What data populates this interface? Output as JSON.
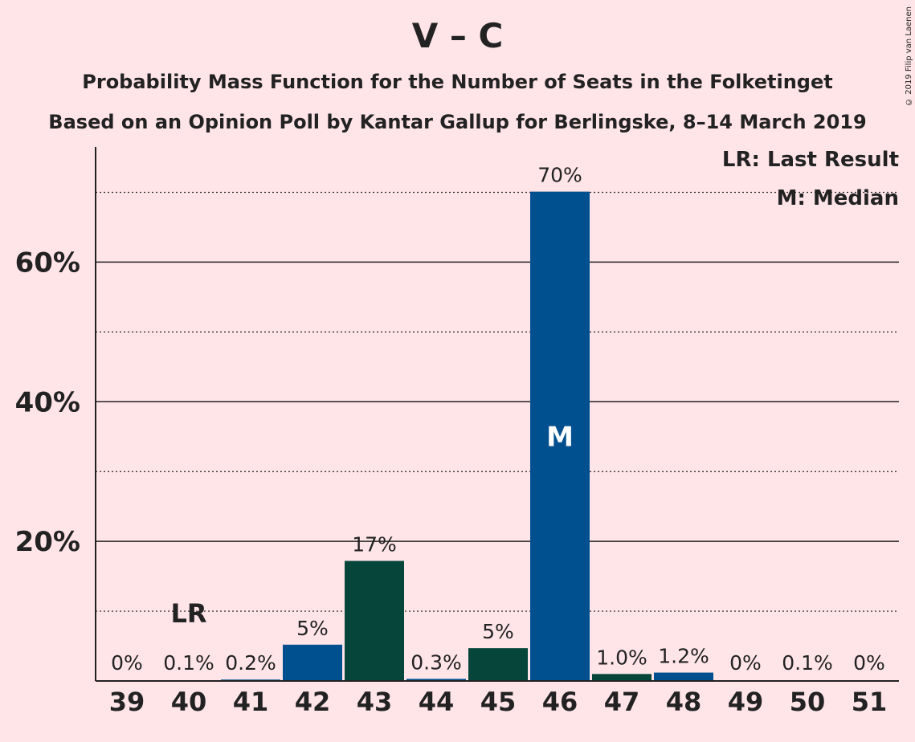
{
  "title": "V – C",
  "subtitle1": "Probability Mass Function for the Number of Seats in the Folketinget",
  "subtitle2": "Based on an Opinion Poll by Kantar Gallup for Berlingske, 8–14 March 2019",
  "copyright": "© 2019 Filip van Laenen",
  "legend": {
    "last_result": "LR: Last Result",
    "median": "M: Median"
  },
  "colors": {
    "background": "#FFE4E8",
    "blue": "#00508F",
    "green": "#05453A",
    "text": "#222222"
  },
  "chart_data": {
    "type": "bar",
    "categories": [
      "39",
      "40",
      "41",
      "42",
      "43",
      "44",
      "45",
      "46",
      "47",
      "48",
      "49",
      "50",
      "51"
    ],
    "values": [
      0,
      0.1,
      0.2,
      5.2,
      17.2,
      0.3,
      4.7,
      70.1,
      1.0,
      1.2,
      0,
      0.1,
      0
    ],
    "labels": [
      "0%",
      "0.1%",
      "0.2%",
      "5%",
      "17%",
      "0.3%",
      "5%",
      "70%",
      "1.0%",
      "1.2%",
      "0%",
      "0.1%",
      "0%"
    ],
    "bar_colors": [
      "blue",
      "green",
      "blue",
      "blue",
      "green",
      "blue",
      "green",
      "blue",
      "green",
      "blue",
      "blue",
      "green",
      "blue"
    ],
    "ylim": [
      0,
      76.5
    ],
    "yticks": [
      20,
      40,
      60
    ],
    "ytick_labels": [
      "20%",
      "40%",
      "60%"
    ],
    "minor_gridlines": [
      10,
      30,
      50,
      70
    ],
    "last_result": {
      "category": "40",
      "label": "LR"
    },
    "median": {
      "category": "46",
      "label": "M"
    },
    "xlabel": "",
    "ylabel": ""
  }
}
